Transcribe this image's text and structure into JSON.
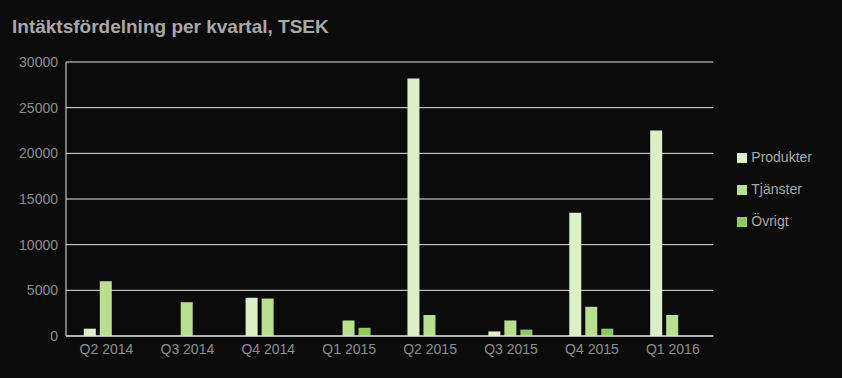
{
  "chart_data": {
    "type": "bar",
    "title": "Intäktsfördelning per kvartal, TSEK",
    "categories": [
      "Q2 2014",
      "Q3 2014",
      "Q4 2014",
      "Q1 2015",
      "Q2 2015",
      "Q3 2015",
      "Q4 2015",
      "Q1 2016"
    ],
    "series": [
      {
        "name": "Produkter",
        "color": "#dcefc6",
        "values": [
          800,
          0,
          4200,
          0,
          28200,
          500,
          13500,
          22500
        ]
      },
      {
        "name": "Tjänster",
        "color": "#b7df8d",
        "values": [
          6000,
          3700,
          4100,
          1700,
          2300,
          1700,
          3200,
          2300
        ]
      },
      {
        "name": "Övrigt",
        "color": "#92c95c",
        "values": [
          0,
          0,
          0,
          900,
          0,
          700,
          800,
          0
        ]
      }
    ],
    "ylim": [
      0,
      30000
    ],
    "yticks": [
      0,
      5000,
      10000,
      15000,
      20000,
      25000,
      30000
    ],
    "grid": true,
    "legend": "right"
  }
}
